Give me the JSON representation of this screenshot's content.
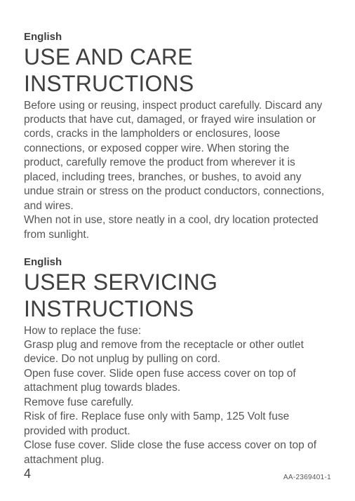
{
  "section1": {
    "lang": "English",
    "title": "USE AND CARE INSTRUCTIONS",
    "body": "Before using or reusing, inspect product carefully. Discard any products that have cut, damaged, or frayed wire insulation or cords, cracks in the lampholders or enclosures, loose connections, or exposed copper wire. When storing the product, carefully remove the product from wherever it is placed, including trees, branches, or bushes, to avoid any undue strain or stress on the product conductors, connections, and wires.\nWhen not in use, store neatly in a cool, dry location protected from sunlight."
  },
  "section2": {
    "lang": "English",
    "title": "USER SERVICING INSTRUCTIONS",
    "body": "How to replace the fuse:\nGrasp plug and remove from the receptacle or other outlet device. Do not unplug by pulling on cord.\nOpen fuse cover. Slide open fuse access cover on top of attachment plug towards blades.\nRemove fuse carefully.\nRisk of fire. Replace fuse only with 5amp, 125 Volt fuse provided with product.\nClose fuse cover. Slide close the fuse access cover on top of attachment plug."
  },
  "footer": {
    "page": "4",
    "docid": "AA-2369401-1"
  },
  "colors": {
    "background": "#ffffff",
    "heading": "#3f3f3f",
    "body": "#555555"
  },
  "typography": {
    "lang_label_size_pt": 11,
    "title_size_pt": 24,
    "body_size_pt": 11.5,
    "page_num_size_pt": 13,
    "docid_size_pt": 7.5
  }
}
